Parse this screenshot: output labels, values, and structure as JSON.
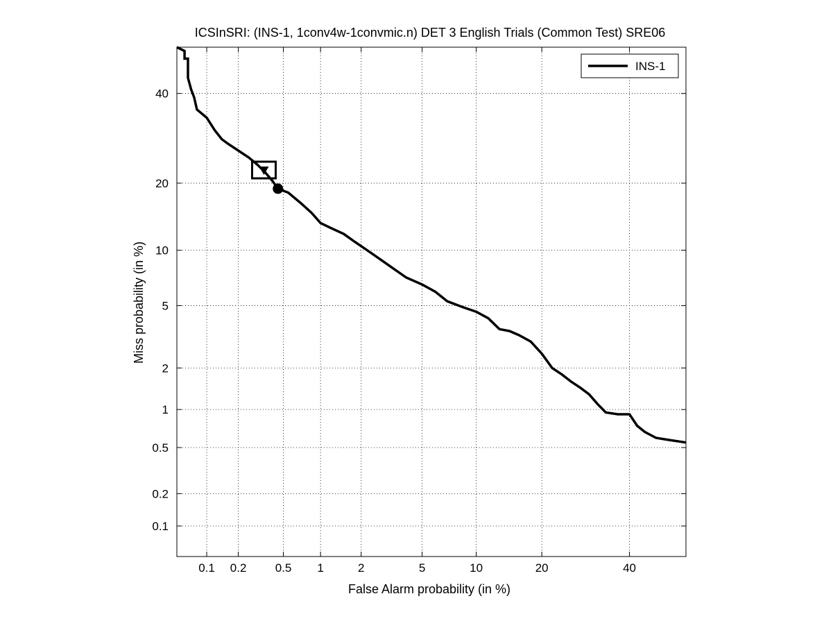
{
  "chart_data": {
    "type": "line",
    "title": "ICSInSRI: (INS-1, 1conv4w-1convmic.n) DET 3 English Trials (Common Test) SRE06",
    "xlabel": "False Alarm probability (in %)",
    "ylabel": "Miss probability (in %)",
    "x_scale": "probit",
    "y_scale": "probit",
    "xlim": [
      0.05,
      55
    ],
    "ylim": [
      0.05,
      52
    ],
    "x_ticks": [
      0.1,
      0.2,
      0.5,
      1,
      2,
      5,
      10,
      20,
      40
    ],
    "x_tick_labels": [
      "0.1",
      "0.2",
      "0.5",
      "1",
      "2",
      "5",
      "10",
      "20",
      "40"
    ],
    "y_ticks": [
      0.1,
      0.2,
      0.5,
      1,
      2,
      5,
      10,
      20,
      40
    ],
    "y_tick_labels": [
      "0.1",
      "0.2",
      "0.5",
      "1",
      "2",
      "5",
      "10",
      "20",
      "40"
    ],
    "grid": true,
    "legend": {
      "position": "top-right",
      "entries": [
        "INS-1"
      ]
    },
    "series": [
      {
        "name": "INS-1",
        "x": [
          0.05,
          0.06,
          0.06,
          0.065,
          0.065,
          0.07,
          0.075,
          0.08,
          0.1,
          0.12,
          0.14,
          0.16,
          0.2,
          0.25,
          0.3,
          0.35,
          0.4,
          0.45,
          0.55,
          0.7,
          0.85,
          1.0,
          1.2,
          1.5,
          1.8,
          2.2,
          2.7,
          3.2,
          4.0,
          5.0,
          6.0,
          7.0,
          8.5,
          10.0,
          11.5,
          13.0,
          14.5,
          16.0,
          18.0,
          20.0,
          22.0,
          24.0,
          26.0,
          28.0,
          30.0,
          32.0,
          34.0,
          37.0,
          40.0,
          42.0,
          44.0,
          47.0,
          50.0,
          55.0
        ],
        "y": [
          52.0,
          51.0,
          49.0,
          49.0,
          44.0,
          41.0,
          39.0,
          36.0,
          34.0,
          31.0,
          29.0,
          28.0,
          26.5,
          25.0,
          23.5,
          22.0,
          20.5,
          19.0,
          18.3,
          16.5,
          15.0,
          13.5,
          12.8,
          12.0,
          11.0,
          10.0,
          9.0,
          8.2,
          7.2,
          6.6,
          6.0,
          5.3,
          4.9,
          4.6,
          4.2,
          3.6,
          3.5,
          3.3,
          3.0,
          2.5,
          2.0,
          1.8,
          1.6,
          1.45,
          1.3,
          1.1,
          0.95,
          0.92,
          0.92,
          0.75,
          0.67,
          0.6,
          0.58,
          0.55
        ]
      }
    ],
    "markers": [
      {
        "type": "act-dcf",
        "shape": "square-with-triangle",
        "x": 0.34,
        "y": 22.5
      },
      {
        "type": "min-dcf",
        "shape": "circle",
        "x": 0.45,
        "y": 19.0
      }
    ]
  }
}
